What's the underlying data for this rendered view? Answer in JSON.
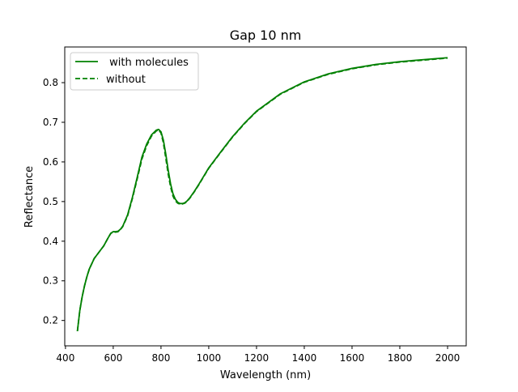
{
  "chart_data": {
    "type": "line",
    "title": "Gap 10 nm",
    "xlabel": "Wavelength (nm)",
    "ylabel": "Reflectance",
    "xlim": [
      397,
      2078
    ],
    "ylim": [
      0.136,
      0.89
    ],
    "xticks": [
      400,
      600,
      800,
      1000,
      1200,
      1400,
      1600,
      1800,
      2000
    ],
    "yticks": [
      0.2,
      0.3,
      0.4,
      0.5,
      0.6,
      0.7,
      0.8
    ],
    "grid": false,
    "legend_position": "top-left",
    "series": [
      {
        "name": " with molecules",
        "color": "#008000",
        "style": "solid",
        "x": [
          450,
          460,
          470,
          480,
          490,
          500,
          520,
          540,
          560,
          580,
          590,
          600,
          610,
          620,
          630,
          640,
          660,
          680,
          700,
          720,
          740,
          760,
          780,
          790,
          800,
          810,
          820,
          830,
          840,
          850,
          860,
          870,
          880,
          890,
          900,
          910,
          920,
          940,
          960,
          980,
          1000,
          1050,
          1100,
          1150,
          1200,
          1300,
          1400,
          1500,
          1600,
          1700,
          1800,
          1900,
          2000
        ],
        "y": [
          0.173,
          0.225,
          0.26,
          0.288,
          0.311,
          0.33,
          0.356,
          0.372,
          0.388,
          0.41,
          0.42,
          0.424,
          0.424,
          0.425,
          0.43,
          0.438,
          0.466,
          0.51,
          0.56,
          0.612,
          0.645,
          0.668,
          0.68,
          0.682,
          0.676,
          0.655,
          0.62,
          0.58,
          0.545,
          0.52,
          0.506,
          0.498,
          0.495,
          0.495,
          0.497,
          0.502,
          0.509,
          0.526,
          0.545,
          0.565,
          0.585,
          0.625,
          0.664,
          0.698,
          0.728,
          0.772,
          0.802,
          0.822,
          0.836,
          0.846,
          0.853,
          0.858,
          0.863
        ]
      },
      {
        "name": "without",
        "color": "#008000",
        "style": "dashed",
        "x": [
          450,
          460,
          470,
          480,
          490,
          500,
          520,
          540,
          560,
          580,
          590,
          600,
          610,
          620,
          630,
          640,
          660,
          680,
          700,
          720,
          740,
          760,
          780,
          790,
          800,
          810,
          820,
          830,
          840,
          850,
          860,
          870,
          880,
          890,
          900,
          910,
          920,
          940,
          960,
          980,
          1000,
          1050,
          1100,
          1150,
          1200,
          1300,
          1400,
          1500,
          1600,
          1700,
          1800,
          1900,
          2000
        ],
        "y": [
          0.173,
          0.225,
          0.26,
          0.288,
          0.311,
          0.33,
          0.356,
          0.372,
          0.388,
          0.41,
          0.42,
          0.423,
          0.423,
          0.424,
          0.429,
          0.437,
          0.464,
          0.507,
          0.556,
          0.607,
          0.641,
          0.665,
          0.678,
          0.681,
          0.673,
          0.648,
          0.61,
          0.57,
          0.538,
          0.514,
          0.502,
          0.496,
          0.493,
          0.494,
          0.496,
          0.501,
          0.508,
          0.525,
          0.544,
          0.564,
          0.584,
          0.624,
          0.663,
          0.697,
          0.727,
          0.771,
          0.801,
          0.821,
          0.835,
          0.845,
          0.852,
          0.857,
          0.862
        ]
      }
    ]
  }
}
